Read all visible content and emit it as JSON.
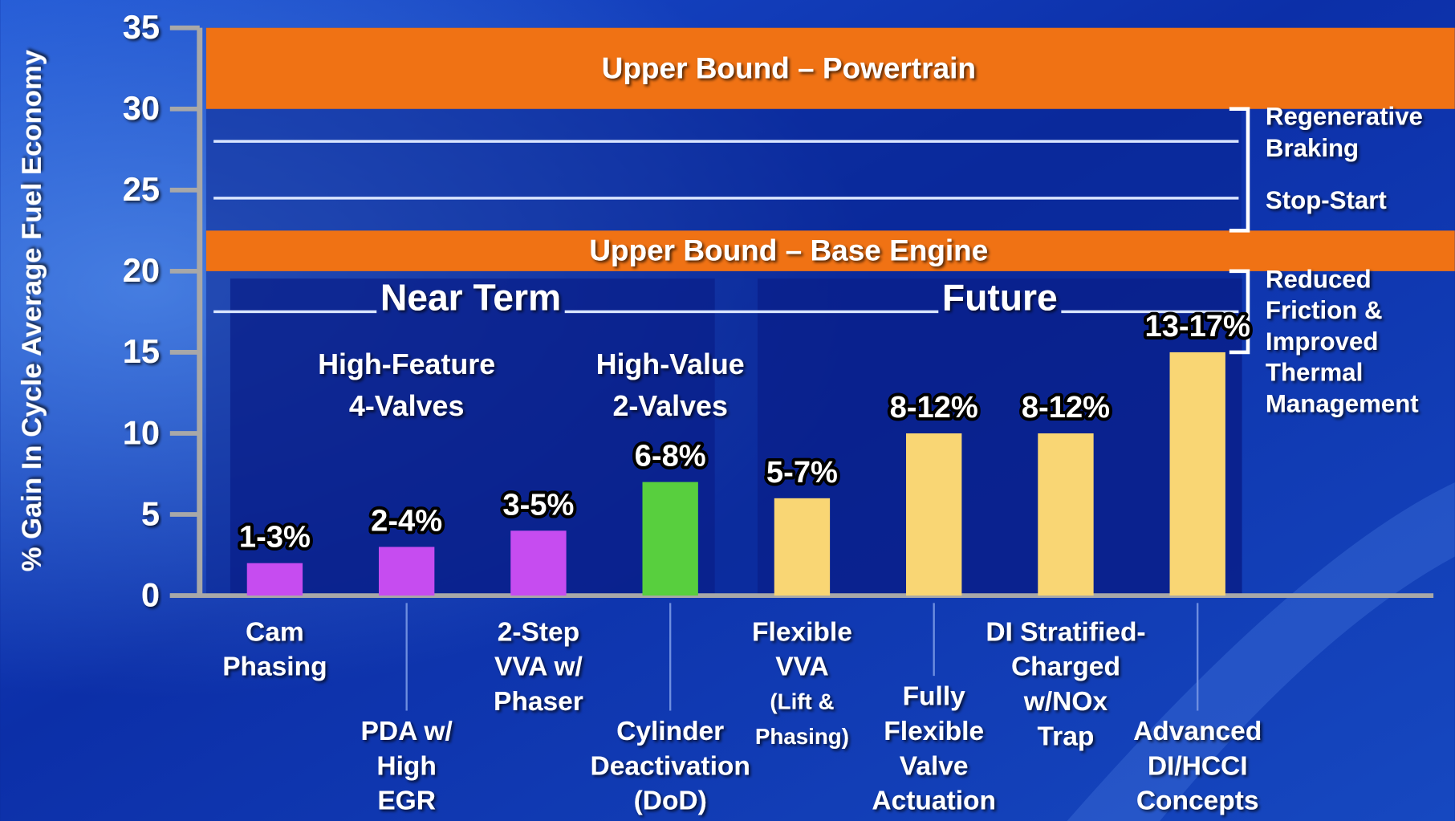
{
  "chart_data": {
    "type": "bar",
    "y_label": "% Gain In Cycle Average Fuel Economy",
    "categories": [
      [
        "Cam",
        "Phasing"
      ],
      [
        "PDA w/",
        "High",
        "EGR"
      ],
      [
        "2-Step",
        "VVA w/",
        "Phaser"
      ],
      [
        "Cylinder",
        "Deactivation",
        "(DoD)"
      ],
      [
        "Flexible",
        "VVA",
        "(Lift &",
        "Phasing)"
      ],
      [
        "Fully",
        "Flexible",
        "Valve",
        "Actuation"
      ],
      [
        "DI Stratified-",
        "Charged",
        "w/NOx",
        "Trap"
      ],
      [
        "Advanced",
        "DI/HCCI",
        "Concepts"
      ]
    ],
    "values": [
      2,
      3,
      4,
      7,
      6,
      10,
      10,
      15
    ],
    "value_labels": [
      "1-3%",
      "2-4%",
      "3-5%",
      "6-8%",
      "5-7%",
      "8-12%",
      "8-12%",
      "13-17%"
    ],
    "colors": [
      "#c64cf0",
      "#c64cf0",
      "#c64cf0",
      "#58cf3e",
      "#f9d674",
      "#f9d674",
      "#f9d674",
      "#f9d674"
    ],
    "ylim": [
      0,
      35
    ],
    "yticks": [
      0,
      5,
      10,
      15,
      20,
      25,
      30,
      35
    ],
    "bands": [
      {
        "label": "Upper Bound – Powertrain",
        "from": 30,
        "to": 35
      },
      {
        "label": "Upper Bound – Base Engine",
        "from": 20,
        "to": 22.5
      }
    ],
    "band_color": "#f07214",
    "groups": [
      {
        "label": "Near Term",
        "subgroups": [
          [
            "High-Feature",
            "4-Valves"
          ],
          [
            "High-Value",
            "2-Valves"
          ]
        ]
      },
      {
        "label": "Future"
      }
    ],
    "group_line": 17.5,
    "annotations": [
      {
        "label": [
          "Regenerative",
          "Braking"
        ],
        "y": 28
      },
      {
        "label": [
          "Stop-Start"
        ],
        "y": 24.5
      }
    ],
    "brackets": [
      {
        "from": 22.5,
        "to": 30
      },
      {
        "label": [
          "Reduced",
          "Friction &",
          "Improved",
          "Thermal",
          "Management"
        ],
        "from": 15,
        "to": 20
      }
    ]
  }
}
